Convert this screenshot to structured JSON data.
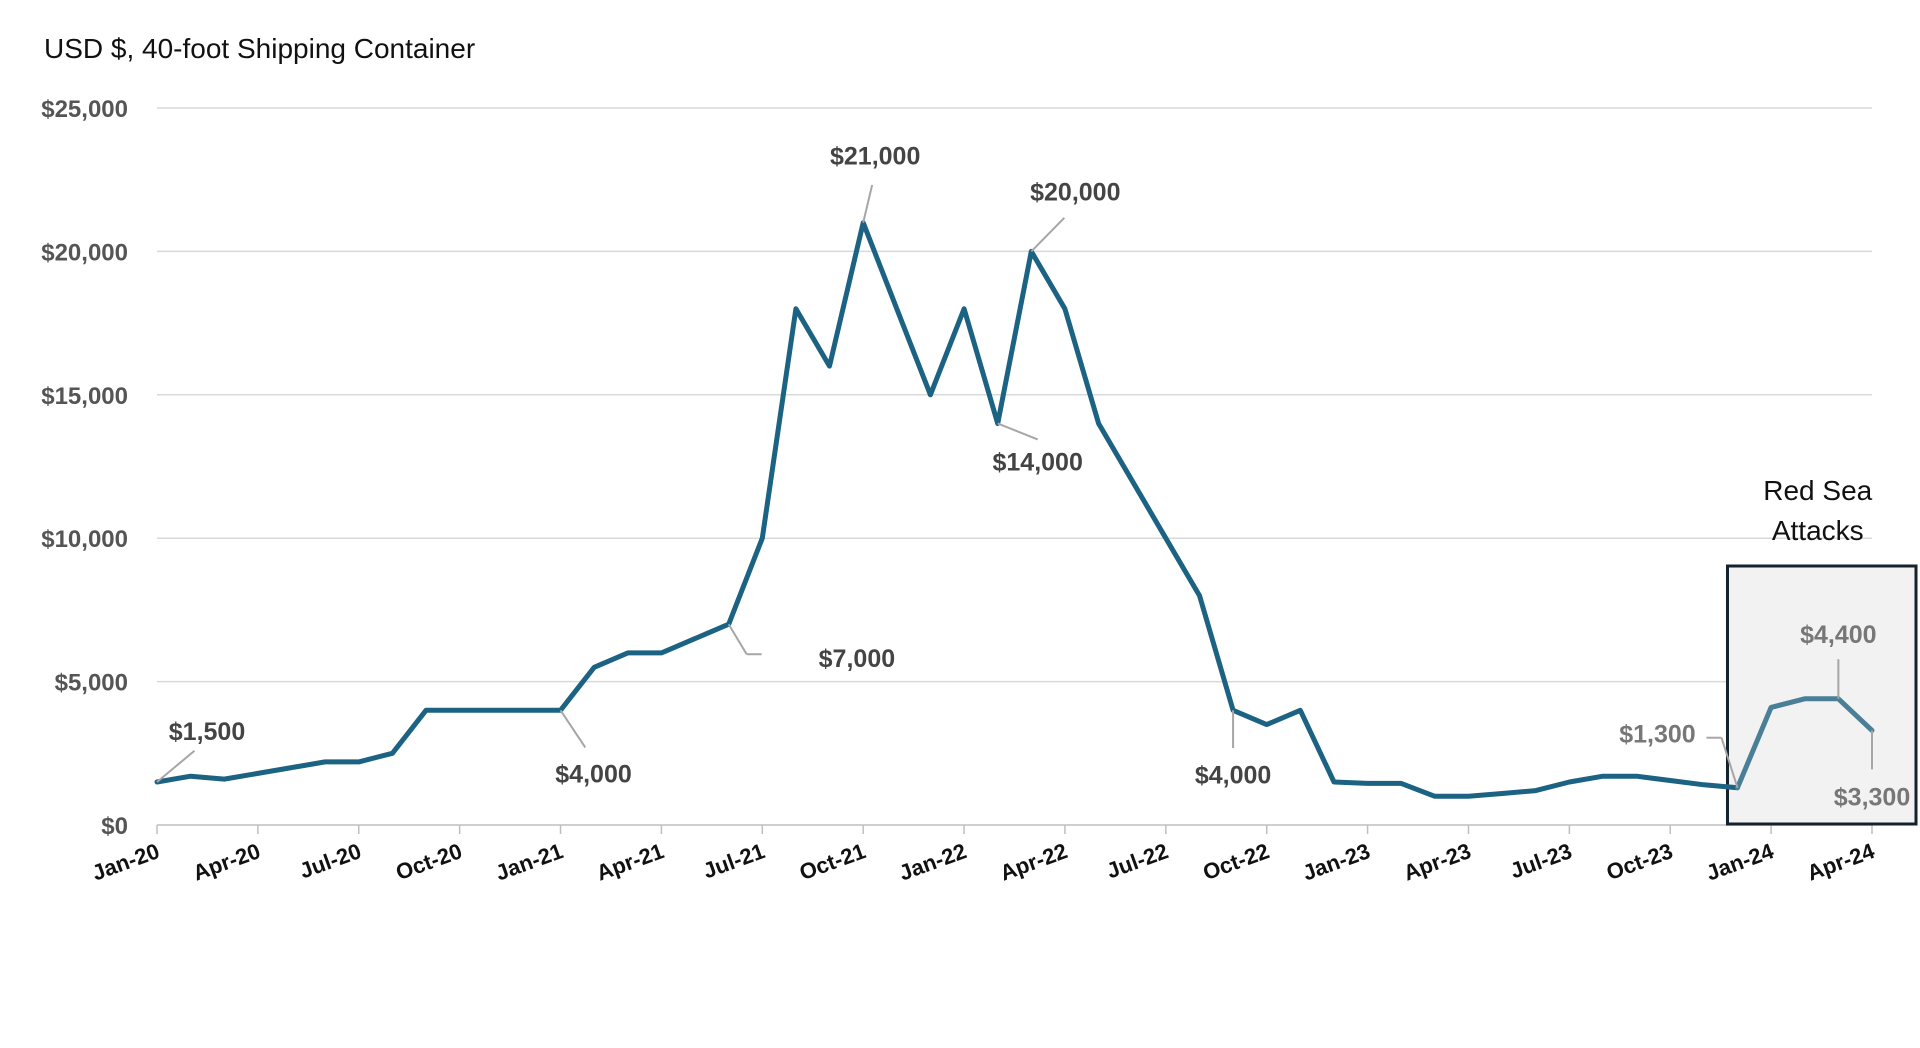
{
  "chart_data": {
    "type": "line",
    "subtitle": "USD $, 40-foot Shipping Container",
    "ylim": [
      0,
      25000
    ],
    "yticks": [
      0,
      5000,
      10000,
      15000,
      20000,
      25000
    ],
    "ytick_labels": [
      "$0",
      "$5,000",
      "$10,000",
      "$15,000",
      "$20,000",
      "$25,000"
    ],
    "xtick_labels": [
      "Jan-20",
      "Apr-20",
      "Jul-20",
      "Oct-20",
      "Jan-21",
      "Apr-21",
      "Jul-21",
      "Oct-21",
      "Jan-22",
      "Apr-22",
      "Jul-22",
      "Oct-22",
      "Jan-23",
      "Apr-23",
      "Jul-23",
      "Oct-23",
      "Jan-24",
      "Apr-24"
    ],
    "grid": true,
    "series": [
      {
        "color": "#1b6283",
        "x": [
          "2020-01",
          "2020-02",
          "2020-03",
          "2020-04",
          "2020-05",
          "2020-06",
          "2020-07",
          "2020-08",
          "2020-09",
          "2020-10",
          "2020-11",
          "2020-12",
          "2021-01",
          "2021-02",
          "2021-03",
          "2021-04",
          "2021-05",
          "2021-06",
          "2021-07",
          "2021-08",
          "2021-09",
          "2021-10",
          "2021-11",
          "2021-12",
          "2022-01",
          "2022-02",
          "2022-03",
          "2022-04",
          "2022-05",
          "2022-06",
          "2022-07",
          "2022-08",
          "2022-09",
          "2022-10",
          "2022-11",
          "2022-12",
          "2023-01",
          "2023-02",
          "2023-03",
          "2023-04",
          "2023-05",
          "2023-06",
          "2023-07",
          "2023-08",
          "2023-09",
          "2023-10",
          "2023-11",
          "2023-12",
          "2024-01",
          "2024-02",
          "2024-03",
          "2024-04"
        ],
        "values": [
          1500,
          1700,
          1600,
          1800,
          2000,
          2200,
          2200,
          2500,
          4000,
          4000,
          4000,
          4000,
          4000,
          5500,
          6000,
          6000,
          6500,
          7000,
          10000,
          18000,
          16000,
          21000,
          18000,
          15000,
          18000,
          14000,
          20000,
          18000,
          14000,
          12000,
          10000,
          8000,
          4000,
          3500,
          4000,
          1500,
          1450,
          1450,
          1000,
          1000,
          1100,
          1200,
          1500,
          1700,
          1700,
          1550,
          1400,
          1300,
          4100,
          4400,
          4400,
          3300
        ]
      }
    ],
    "annotations": [
      {
        "x": "2020-01",
        "value": 1500,
        "label": "$1,500"
      },
      {
        "x": "2021-01",
        "value": 4000,
        "label": "$4,000"
      },
      {
        "x": "2021-06",
        "value": 7000,
        "label": "$7,000"
      },
      {
        "x": "2021-10",
        "value": 21000,
        "label": "$21,000"
      },
      {
        "x": "2022-02",
        "value": 14000,
        "label": "$14,000"
      },
      {
        "x": "2022-03",
        "value": 20000,
        "label": "$20,000"
      },
      {
        "x": "2022-09",
        "value": 4000,
        "label": "$4,000"
      },
      {
        "x": "2023-12",
        "value": 1300,
        "label": "$1,300"
      },
      {
        "x": "2024-03",
        "value": 4400,
        "label": "$4,400"
      },
      {
        "x": "2024-04",
        "value": 3300,
        "label": "$3,300"
      }
    ],
    "highlight": {
      "label_line1": "Red Sea",
      "label_line2": "Attacks",
      "from": "2023-12",
      "to": "2024-04",
      "line_color": "#4a7f98",
      "fill": "#f2f2f2",
      "border": "#14232d"
    }
  }
}
